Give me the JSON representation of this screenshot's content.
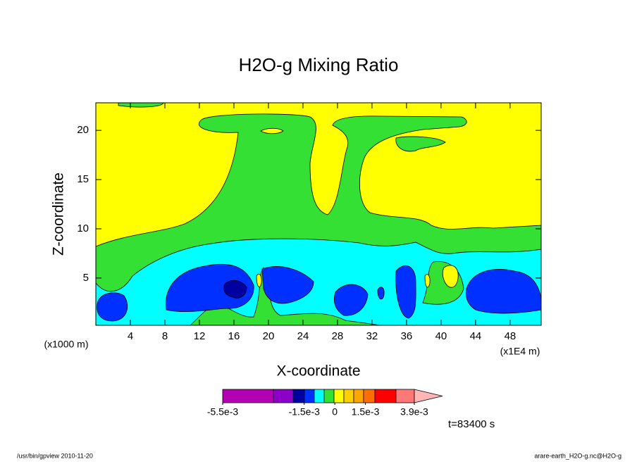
{
  "chart_data": {
    "type": "contour",
    "title": "H2O-g Mixing Ratio",
    "x_label": "X-coordinate",
    "y_label": "Z-coordinate",
    "x_unit_label": "(x1000 m)",
    "x_scale_label": "(x1E4 m)",
    "xlim": [
      0,
      51.6
    ],
    "xticks": [
      4,
      8,
      12,
      16,
      20,
      24,
      28,
      32,
      36,
      40,
      44,
      48
    ],
    "ylim": [
      0.2,
      22.8
    ],
    "yticks": [
      5,
      10,
      15,
      20
    ],
    "colorbar": {
      "lim": [
        -0.0055,
        0.0039
      ],
      "ticks": [
        {
          "value": -0.0055,
          "label": "-5.5e-3"
        },
        {
          "value": -0.0015,
          "label": "-1.5e-3"
        },
        0,
        {
          "value": 0.0015,
          "label": "1.5e-3"
        },
        {
          "value": 0.0039,
          "label": "3.9e-3"
        }
      ],
      "colors": [
        "#b400b4",
        "#8c00c8",
        "#0000a0",
        "#0030ff",
        "#00ffff",
        "#33e033",
        "#ffff00",
        "#ffd000",
        "#ffa500",
        "#ff6e00",
        "#ff0000",
        "#ff7878"
      ],
      "extend_color": "#ffb6b6"
    },
    "time_label": "t=83400 s",
    "footer_left": "/usr/bin/gpview  2010-11-20",
    "footer_right": "arare-earth_H2O-g.nc@H2O-g"
  }
}
